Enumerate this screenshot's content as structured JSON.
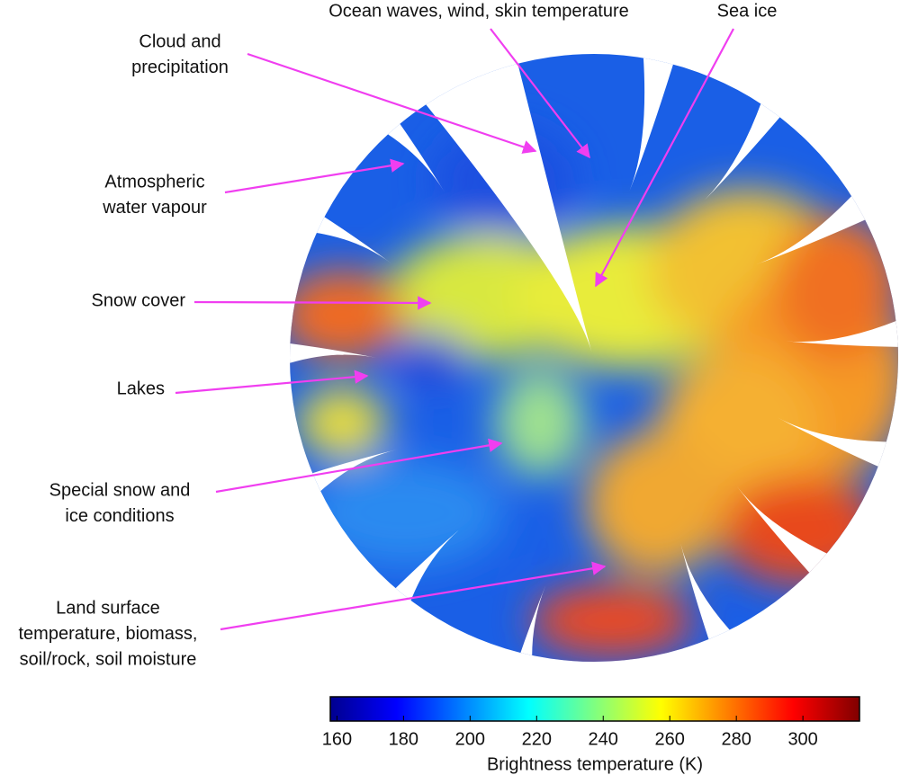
{
  "annotations": [
    {
      "lines": [
        "Ocean waves, wind, skin temperature"
      ]
    },
    {
      "lines": [
        "Sea ice"
      ]
    },
    {
      "lines": [
        "Cloud and",
        "precipitation"
      ]
    },
    {
      "lines": [
        "Atmospheric",
        "water vapour"
      ]
    },
    {
      "lines": [
        "Snow cover"
      ]
    },
    {
      "lines": [
        "Lakes"
      ]
    },
    {
      "lines": [
        "Special snow and",
        "ice conditions"
      ]
    },
    {
      "lines": [
        "Land surface",
        "temperature, biomass,",
        "soil/rock, soil moisture"
      ]
    }
  ],
  "colorbar": {
    "label": "Brightness temperature (K)",
    "colormap": "jet",
    "lim": [
      158,
      317
    ],
    "ticks": [
      160,
      180,
      200,
      220,
      240,
      260,
      280,
      300
    ]
  }
}
